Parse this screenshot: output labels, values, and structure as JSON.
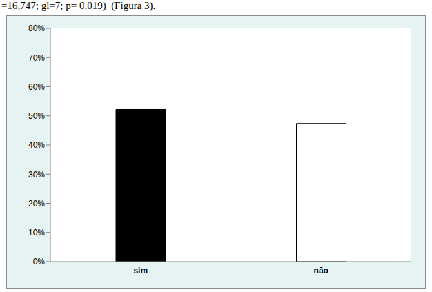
{
  "chart_data": {
    "type": "bar",
    "annotations": [
      "=16,747; gl=7; p= 0,019)  (Figura 3)."
    ],
    "categories": [
      "sim",
      "não"
    ],
    "values": [
      52.2,
      47.4
    ],
    "colors": [
      "#000000",
      "#ffffff"
    ],
    "ylim": [
      0,
      80
    ],
    "yticks": [
      {
        "value": 0,
        "label": "0%"
      },
      {
        "value": 10,
        "label": "10%"
      },
      {
        "value": 20,
        "label": "20%"
      },
      {
        "value": 30,
        "label": "30%"
      },
      {
        "value": 40,
        "label": "40%"
      },
      {
        "value": 50,
        "label": "50%"
      },
      {
        "value": 60,
        "label": "60%"
      },
      {
        "value": 70,
        "label": "70%"
      },
      {
        "value": 80,
        "label": "80%"
      }
    ],
    "grid": false
  }
}
